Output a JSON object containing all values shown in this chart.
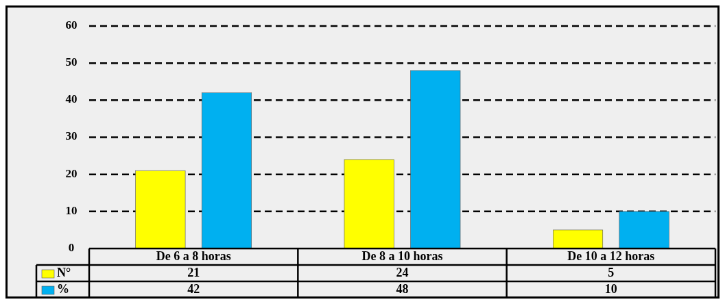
{
  "chart_data": {
    "type": "bar",
    "categories": [
      "De 6 a 8 horas",
      "De 8 a 10 horas",
      "De 10 a 12 horas"
    ],
    "series": [
      {
        "name": "N°",
        "color": "#ffff00",
        "values": [
          21,
          24,
          5
        ]
      },
      {
        "name": "%",
        "color": "#00b0f0",
        "values": [
          42,
          48,
          10
        ]
      }
    ],
    "ylim": [
      0,
      60
    ],
    "yticks": [
      0,
      10,
      20,
      30,
      40,
      50,
      60
    ],
    "grid": "y",
    "legend": "bottom",
    "data_labels": true
  }
}
